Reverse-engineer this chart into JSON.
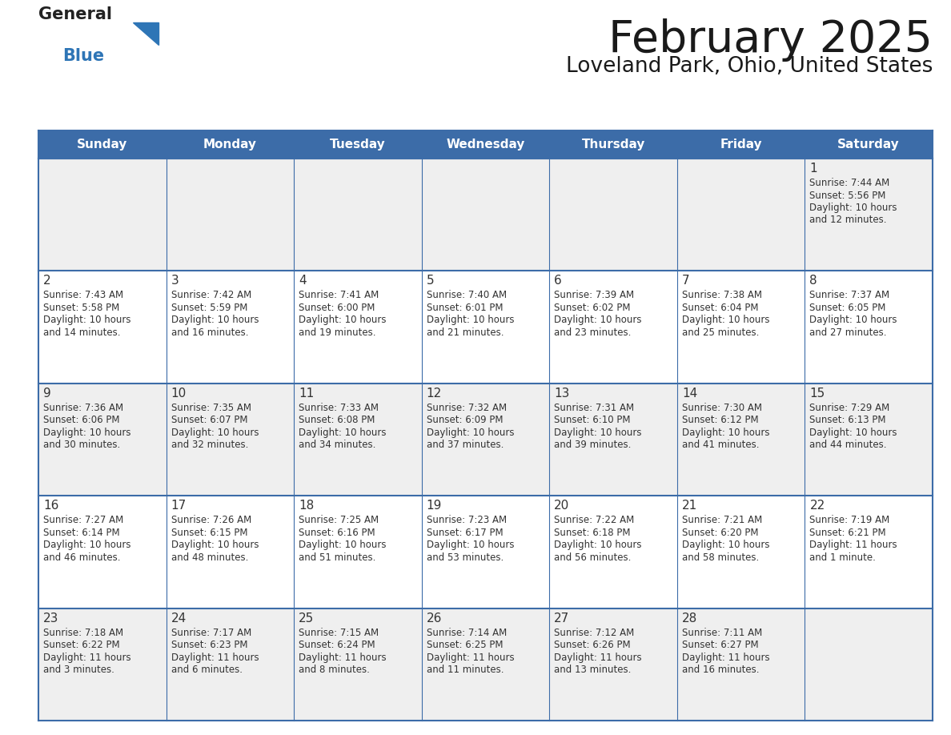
{
  "title": "February 2025",
  "subtitle": "Loveland Park, Ohio, United States",
  "days_of_week": [
    "Sunday",
    "Monday",
    "Tuesday",
    "Wednesday",
    "Thursday",
    "Friday",
    "Saturday"
  ],
  "header_bg": "#3C6CA8",
  "header_text_color": "#FFFFFF",
  "cell_bg_light": "#EFEFEF",
  "cell_bg_white": "#FFFFFF",
  "line_color": "#3C6CA8",
  "text_color": "#333333",
  "day_number_color": "#333333",
  "logo_general_color": "#222222",
  "logo_blue_color": "#2E75B6",
  "calendar": [
    [
      null,
      null,
      null,
      null,
      null,
      null,
      1
    ],
    [
      2,
      3,
      4,
      5,
      6,
      7,
      8
    ],
    [
      9,
      10,
      11,
      12,
      13,
      14,
      15
    ],
    [
      16,
      17,
      18,
      19,
      20,
      21,
      22
    ],
    [
      23,
      24,
      25,
      26,
      27,
      28,
      null
    ]
  ],
  "cell_data": {
    "1": {
      "sunrise": "7:44 AM",
      "sunset": "5:56 PM",
      "daylight": "10 hours",
      "daylight2": "and 12 minutes."
    },
    "2": {
      "sunrise": "7:43 AM",
      "sunset": "5:58 PM",
      "daylight": "10 hours",
      "daylight2": "and 14 minutes."
    },
    "3": {
      "sunrise": "7:42 AM",
      "sunset": "5:59 PM",
      "daylight": "10 hours",
      "daylight2": "and 16 minutes."
    },
    "4": {
      "sunrise": "7:41 AM",
      "sunset": "6:00 PM",
      "daylight": "10 hours",
      "daylight2": "and 19 minutes."
    },
    "5": {
      "sunrise": "7:40 AM",
      "sunset": "6:01 PM",
      "daylight": "10 hours",
      "daylight2": "and 21 minutes."
    },
    "6": {
      "sunrise": "7:39 AM",
      "sunset": "6:02 PM",
      "daylight": "10 hours",
      "daylight2": "and 23 minutes."
    },
    "7": {
      "sunrise": "7:38 AM",
      "sunset": "6:04 PM",
      "daylight": "10 hours",
      "daylight2": "and 25 minutes."
    },
    "8": {
      "sunrise": "7:37 AM",
      "sunset": "6:05 PM",
      "daylight": "10 hours",
      "daylight2": "and 27 minutes."
    },
    "9": {
      "sunrise": "7:36 AM",
      "sunset": "6:06 PM",
      "daylight": "10 hours",
      "daylight2": "and 30 minutes."
    },
    "10": {
      "sunrise": "7:35 AM",
      "sunset": "6:07 PM",
      "daylight": "10 hours",
      "daylight2": "and 32 minutes."
    },
    "11": {
      "sunrise": "7:33 AM",
      "sunset": "6:08 PM",
      "daylight": "10 hours",
      "daylight2": "and 34 minutes."
    },
    "12": {
      "sunrise": "7:32 AM",
      "sunset": "6:09 PM",
      "daylight": "10 hours",
      "daylight2": "and 37 minutes."
    },
    "13": {
      "sunrise": "7:31 AM",
      "sunset": "6:10 PM",
      "daylight": "10 hours",
      "daylight2": "and 39 minutes."
    },
    "14": {
      "sunrise": "7:30 AM",
      "sunset": "6:12 PM",
      "daylight": "10 hours",
      "daylight2": "and 41 minutes."
    },
    "15": {
      "sunrise": "7:29 AM",
      "sunset": "6:13 PM",
      "daylight": "10 hours",
      "daylight2": "and 44 minutes."
    },
    "16": {
      "sunrise": "7:27 AM",
      "sunset": "6:14 PM",
      "daylight": "10 hours",
      "daylight2": "and 46 minutes."
    },
    "17": {
      "sunrise": "7:26 AM",
      "sunset": "6:15 PM",
      "daylight": "10 hours",
      "daylight2": "and 48 minutes."
    },
    "18": {
      "sunrise": "7:25 AM",
      "sunset": "6:16 PM",
      "daylight": "10 hours",
      "daylight2": "and 51 minutes."
    },
    "19": {
      "sunrise": "7:23 AM",
      "sunset": "6:17 PM",
      "daylight": "10 hours",
      "daylight2": "and 53 minutes."
    },
    "20": {
      "sunrise": "7:22 AM",
      "sunset": "6:18 PM",
      "daylight": "10 hours",
      "daylight2": "and 56 minutes."
    },
    "21": {
      "sunrise": "7:21 AM",
      "sunset": "6:20 PM",
      "daylight": "10 hours",
      "daylight2": "and 58 minutes."
    },
    "22": {
      "sunrise": "7:19 AM",
      "sunset": "6:21 PM",
      "daylight": "11 hours",
      "daylight2": "and 1 minute."
    },
    "23": {
      "sunrise": "7:18 AM",
      "sunset": "6:22 PM",
      "daylight": "11 hours",
      "daylight2": "and 3 minutes."
    },
    "24": {
      "sunrise": "7:17 AM",
      "sunset": "6:23 PM",
      "daylight": "11 hours",
      "daylight2": "and 6 minutes."
    },
    "25": {
      "sunrise": "7:15 AM",
      "sunset": "6:24 PM",
      "daylight": "11 hours",
      "daylight2": "and 8 minutes."
    },
    "26": {
      "sunrise": "7:14 AM",
      "sunset": "6:25 PM",
      "daylight": "11 hours",
      "daylight2": "and 11 minutes."
    },
    "27": {
      "sunrise": "7:12 AM",
      "sunset": "6:26 PM",
      "daylight": "11 hours",
      "daylight2": "and 13 minutes."
    },
    "28": {
      "sunrise": "7:11 AM",
      "sunset": "6:27 PM",
      "daylight": "11 hours",
      "daylight2": "and 16 minutes."
    }
  },
  "row_colors": [
    "#EFEFEF",
    "#FFFFFF",
    "#EFEFEF",
    "#FFFFFF",
    "#EFEFEF"
  ]
}
